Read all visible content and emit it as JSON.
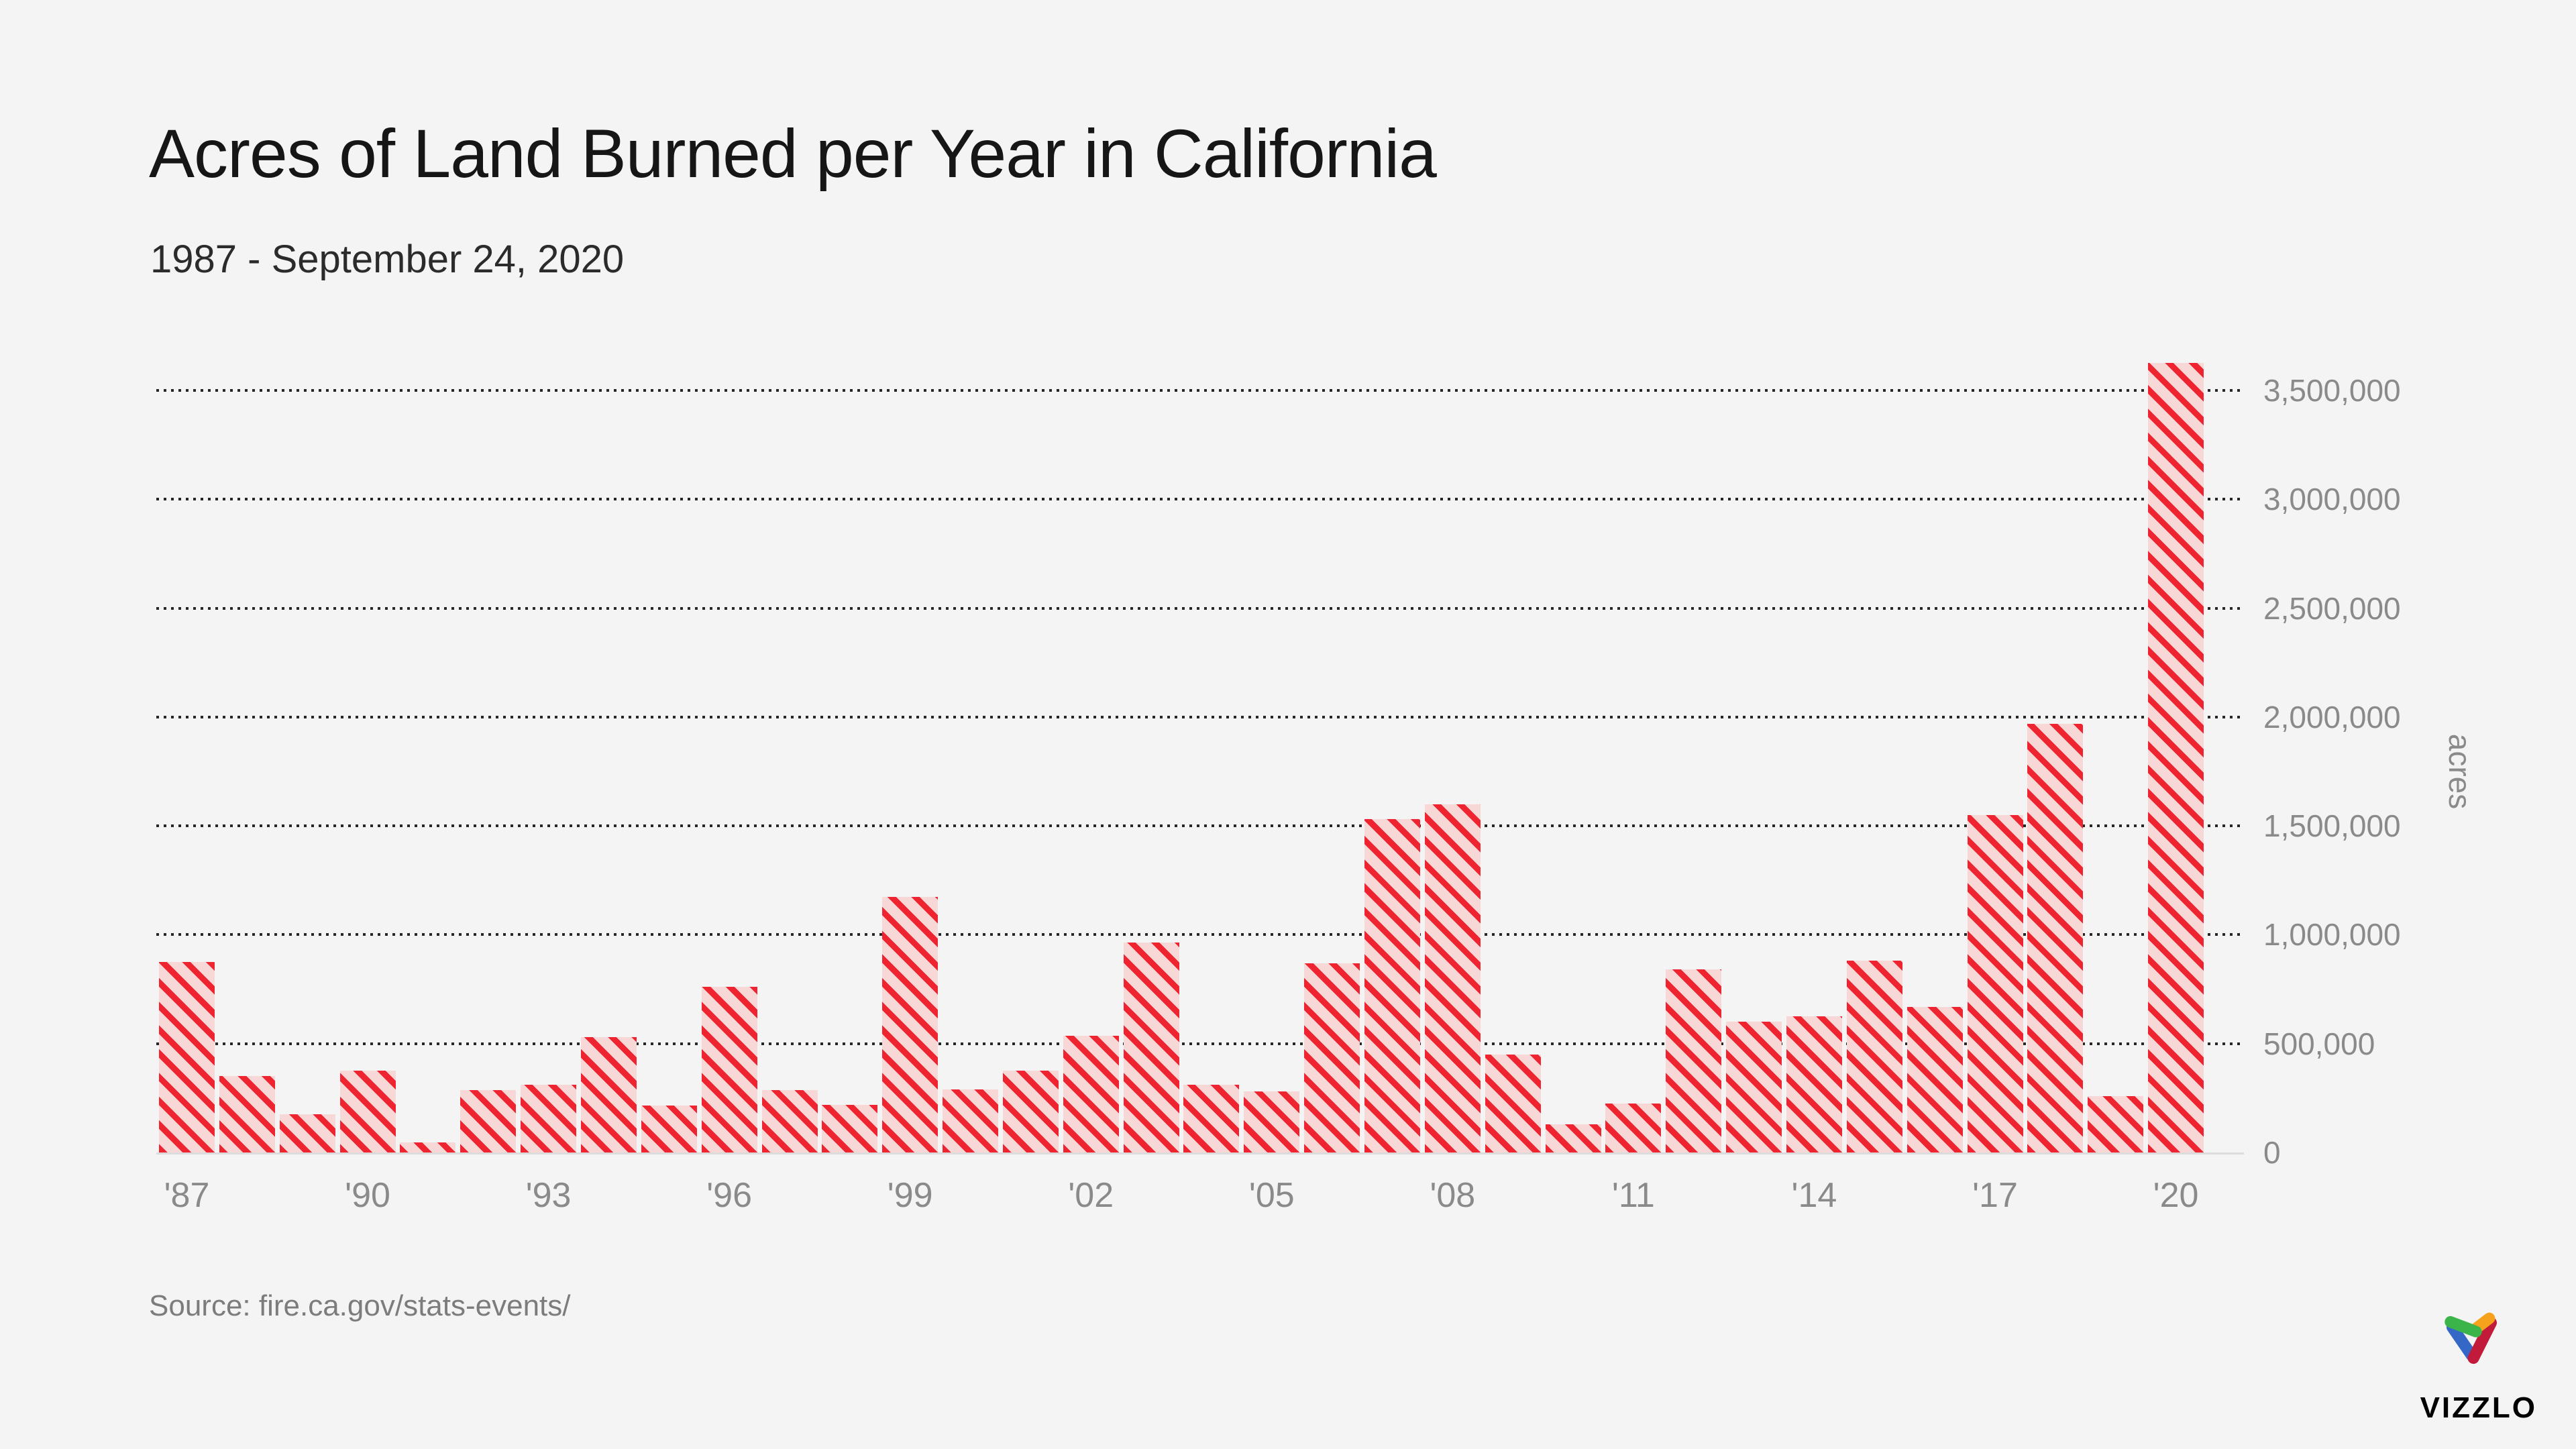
{
  "title": "Acres of Land Burned per Year in California",
  "subtitle": "1987 - September 24, 2020",
  "source": "Source: fire.ca.gov/stats-events/",
  "branding": {
    "wordmark": "VIZZLO",
    "logo_colors": {
      "green": "#3bb54a",
      "orange": "#f6a21d",
      "blue": "#3567c6",
      "red": "#c11a3b"
    }
  },
  "colors": {
    "background": "#f4f4f4",
    "bar_fill": "#f8d7d7",
    "bar_stripe": "#ee2430",
    "grid_dot": "#262626",
    "axis_text": "#8a8a8a",
    "title_text": "#161616",
    "subtitle_text": "#2b2b2b",
    "source_text": "#7c7c7c",
    "baseline": "#dcdcdc"
  },
  "y_axis": {
    "unit_label": "acres",
    "ticks": [
      "0",
      "500,000",
      "1,000,000",
      "1,500,000",
      "2,000,000",
      "2,500,000",
      "3,000,000",
      "3,500,000"
    ],
    "tick_step": 500000
  },
  "x_axis": {
    "tick_years": [
      "'87",
      "'90",
      "'93",
      "'96",
      "'99",
      "'02",
      "'05",
      "'08",
      "'11",
      "'14",
      "'17",
      "'20"
    ],
    "tick_interval": 3
  },
  "chart_data": {
    "type": "bar",
    "title": "Acres of Land Burned per Year in California",
    "subtitle": "1987 - September 24, 2020",
    "xlabel": "",
    "ylabel": "acres",
    "ylim": [
      0,
      3700000
    ],
    "grid": "horizontal-dotted",
    "bar_style": "pink fill with red diagonal hatch stripes",
    "x": [
      1987,
      1988,
      1989,
      1990,
      1991,
      1992,
      1993,
      1994,
      1995,
      1996,
      1997,
      1998,
      1999,
      2000,
      2001,
      2002,
      2003,
      2004,
      2005,
      2006,
      2007,
      2008,
      2009,
      2010,
      2011,
      2012,
      2013,
      2014,
      2015,
      2016,
      2017,
      2018,
      2019,
      2020
    ],
    "values": [
      875000,
      350000,
      175000,
      375000,
      45000,
      285000,
      310000,
      530000,
      215000,
      760000,
      285000,
      220000,
      1175000,
      290000,
      375000,
      535000,
      965000,
      310000,
      280000,
      870000,
      1530000,
      1600000,
      450000,
      130000,
      225000,
      840000,
      600000,
      625000,
      880000,
      670000,
      1550000,
      1970000,
      260000,
      3627000
    ]
  }
}
